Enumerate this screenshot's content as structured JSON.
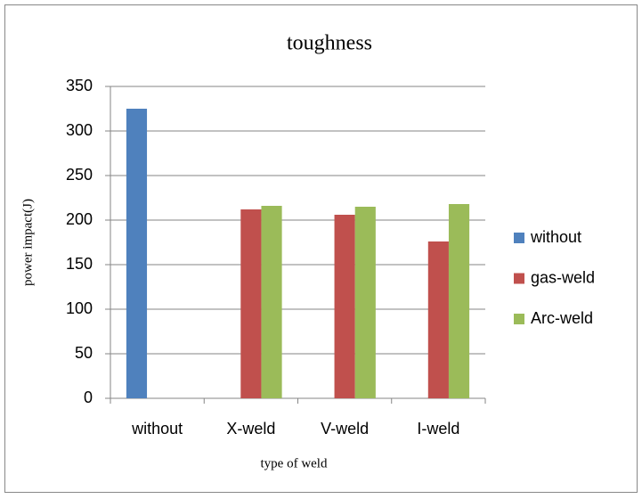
{
  "chart_data": {
    "type": "bar",
    "title": "toughness",
    "x_label": "type of weld",
    "y_label": "power impact(J)",
    "categories": [
      "without",
      "X-weld",
      "V-weld",
      "I-weld"
    ],
    "series": [
      {
        "name": "without",
        "color": "#4f81bd",
        "values": [
          325,
          null,
          null,
          null
        ]
      },
      {
        "name": "gas-weld",
        "color": "#c0504d",
        "values": [
          null,
          212,
          206,
          176
        ]
      },
      {
        "name": "Arc-weld",
        "color": "#9bbb59",
        "values": [
          null,
          216,
          215,
          218
        ]
      }
    ],
    "ylim": [
      0,
      350
    ],
    "yticks": [
      0,
      50,
      100,
      150,
      200,
      250,
      300,
      350
    ],
    "grid": true,
    "legend": "right"
  }
}
